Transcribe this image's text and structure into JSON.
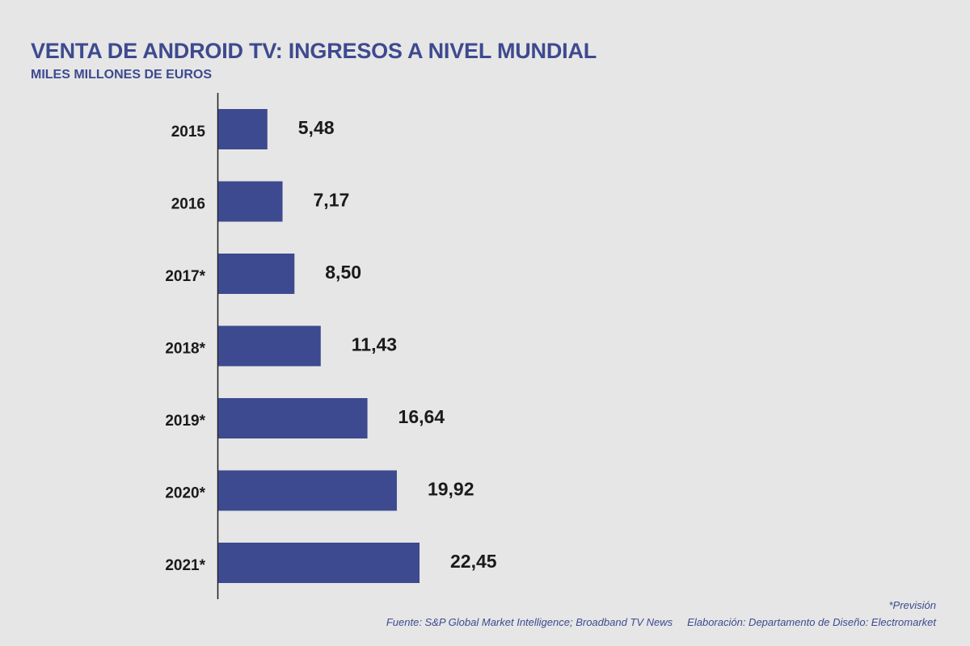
{
  "title": "VENTA DE ANDROID TV: INGRESOS A NIVEL MUNDIAL",
  "subtitle": "MILES MILLONES DE EUROS",
  "footnotes": {
    "prevision": "*Previsión",
    "source": "Fuente: S&P Global Market Intelligence; Broadband TV News",
    "credit": "Elaboración: Departamento de Diseño: Electromarket"
  },
  "colors": {
    "bar": "#3d4a8f",
    "accent_text": "#3d4a8f",
    "background": "#e6e6e6",
    "text": "#1a1a1a"
  },
  "chart_data": {
    "type": "bar",
    "orientation": "horizontal",
    "title": "VENTA DE ANDROID TV: INGRESOS A NIVEL MUNDIAL",
    "subtitle": "MILES MILLONES DE EUROS",
    "categories": [
      "2015",
      "2016",
      "2017*",
      "2018*",
      "2019*",
      "2020*",
      "2021*"
    ],
    "values": [
      5.48,
      7.17,
      8.5,
      11.43,
      16.64,
      19.92,
      22.45
    ],
    "value_labels": [
      "5,48",
      "7,17",
      "8,50",
      "11,43",
      "16,64",
      "19,92",
      "22,45"
    ],
    "xlim": [
      0,
      22.45
    ],
    "grid": false,
    "legend": "none"
  }
}
